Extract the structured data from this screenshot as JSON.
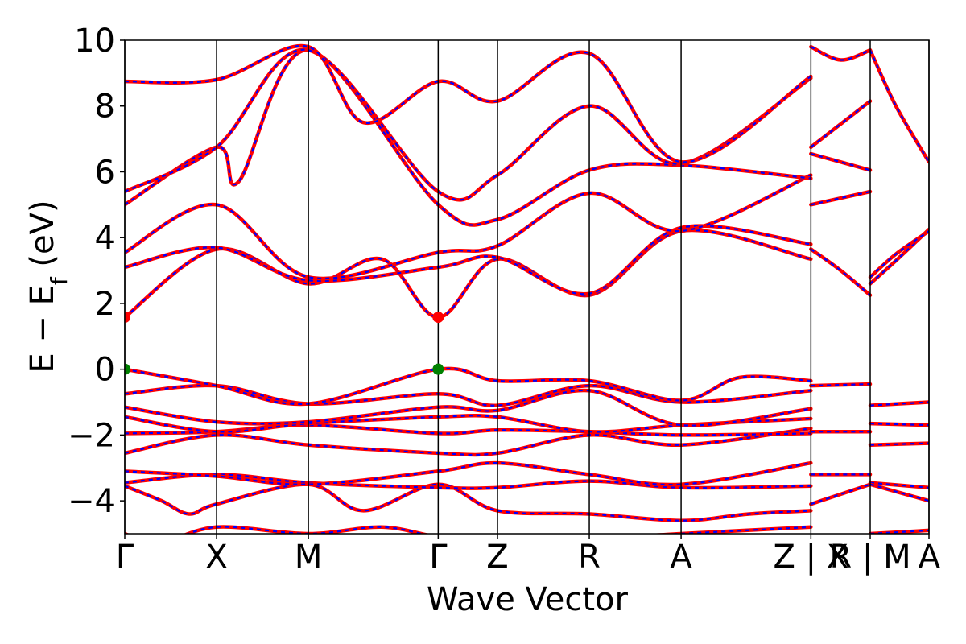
{
  "chart_data": {
    "type": "line",
    "xlabel": "Wave Vector",
    "ylabel": {
      "main": "E − E",
      "sub": "f",
      "unit": " (eV)"
    },
    "ylim": [
      -5,
      10
    ],
    "yticks": [
      "10",
      "8",
      "6",
      "4",
      "2",
      "0",
      "−2",
      "−4"
    ],
    "ytick_values": [
      10,
      8,
      6,
      4,
      2,
      0,
      -2,
      -4
    ],
    "xlim": [
      0,
      4.38
    ],
    "kpoints": [
      {
        "label": "Γ",
        "x": 0.0
      },
      {
        "label": "X",
        "x": 0.5
      },
      {
        "label": "M",
        "x": 1.0
      },
      {
        "label": "Γ",
        "x": 1.707
      },
      {
        "label": "Z",
        "x": 2.03
      },
      {
        "label": "R",
        "x": 2.53
      },
      {
        "label": "A",
        "x": 3.03
      },
      {
        "label": "Z | X",
        "x": 3.737
      },
      {
        "label": "R | M",
        "x": 4.06
      },
      {
        "label": "A",
        "x": 4.38
      }
    ],
    "series_colors": {
      "solid": "#ff0000",
      "dashed": "#0000ff"
    },
    "band_edges": [
      {
        "name": "CBM",
        "color": "#ff0000",
        "points": [
          [
            0.0,
            1.58
          ],
          [
            1.707,
            1.58
          ]
        ]
      },
      {
        "name": "VBM",
        "color": "#008000",
        "points": [
          [
            0.0,
            0.0
          ],
          [
            1.707,
            0.0
          ]
        ]
      }
    ],
    "bands": [
      [
        [
          0,
          -5.0
        ],
        [
          0.1,
          -5.2
        ],
        [
          0.2,
          -5.3
        ],
        [
          0.5,
          -4.8
        ],
        [
          1.0,
          -5.0
        ],
        [
          1.4,
          -4.8
        ],
        [
          1.707,
          -5.1
        ],
        [
          2.03,
          -5.3
        ],
        [
          3.03,
          -5.0
        ],
        [
          3.737,
          -4.8
        ]
      ],
      [
        [
          0,
          -3.55
        ],
        [
          0.2,
          -4.0
        ],
        [
          0.35,
          -4.4
        ],
        [
          0.5,
          -4.1
        ],
        [
          1.0,
          -3.5
        ],
        [
          1.3,
          -4.3
        ],
        [
          1.707,
          -3.5
        ],
        [
          2.03,
          -4.3
        ],
        [
          2.53,
          -4.4
        ],
        [
          3.03,
          -4.6
        ],
        [
          3.4,
          -4.4
        ],
        [
          3.737,
          -4.3
        ]
      ],
      [
        [
          0,
          -3.45
        ],
        [
          0.5,
          -3.2
        ],
        [
          1.0,
          -3.45
        ],
        [
          1.707,
          -3.6
        ],
        [
          2.03,
          -3.6
        ],
        [
          2.53,
          -3.4
        ],
        [
          3.03,
          -3.6
        ],
        [
          3.737,
          -3.55
        ]
      ],
      [
        [
          0,
          -3.1
        ],
        [
          0.5,
          -3.25
        ],
        [
          1.0,
          -3.5
        ],
        [
          1.707,
          -3.1
        ],
        [
          2.03,
          -2.85
        ],
        [
          2.53,
          -3.2
        ],
        [
          3.03,
          -3.5
        ],
        [
          3.737,
          -2.85
        ]
      ],
      [
        [
          0,
          -2.55
        ],
        [
          0.5,
          -2.0
        ],
        [
          1.0,
          -2.3
        ],
        [
          1.707,
          -2.55
        ],
        [
          2.03,
          -2.55
        ],
        [
          2.53,
          -2.0
        ],
        [
          3.03,
          -2.3
        ],
        [
          3.737,
          -1.8
        ]
      ],
      [
        [
          0,
          -1.95
        ],
        [
          0.5,
          -1.9
        ],
        [
          1.0,
          -1.7
        ],
        [
          1.707,
          -1.95
        ],
        [
          2.03,
          -1.85
        ],
        [
          2.53,
          -1.9
        ],
        [
          3.03,
          -2.0
        ],
        [
          3.737,
          -1.95
        ]
      ],
      [
        [
          0,
          -1.45
        ],
        [
          0.5,
          -1.9
        ],
        [
          1.0,
          -1.65
        ],
        [
          1.707,
          -1.45
        ],
        [
          2.03,
          -1.45
        ],
        [
          2.53,
          -1.9
        ],
        [
          3.03,
          -1.7
        ],
        [
          3.737,
          -1.5
        ]
      ],
      [
        [
          0,
          -1.15
        ],
        [
          0.5,
          -1.6
        ],
        [
          1.0,
          -1.6
        ],
        [
          1.707,
          -1.15
        ],
        [
          2.03,
          -1.25
        ],
        [
          2.53,
          -0.65
        ],
        [
          3.03,
          -1.7
        ],
        [
          3.737,
          -1.2
        ]
      ],
      [
        [
          0,
          -0.75
        ],
        [
          0.5,
          -0.5
        ],
        [
          1.0,
          -1.05
        ],
        [
          1.707,
          -0.75
        ],
        [
          2.03,
          -1.1
        ],
        [
          2.53,
          -0.5
        ],
        [
          3.03,
          -1.0
        ],
        [
          3.737,
          -0.65
        ]
      ],
      [
        [
          0,
          0.0
        ],
        [
          0.5,
          -0.5
        ],
        [
          1.0,
          -1.05
        ],
        [
          1.707,
          0.0
        ],
        [
          2.03,
          -0.35
        ],
        [
          2.53,
          -0.35
        ],
        [
          3.03,
          -0.95
        ],
        [
          3.35,
          -0.25
        ],
        [
          3.737,
          -0.35
        ]
      ],
      [
        [
          0,
          1.58
        ],
        [
          0.5,
          3.65
        ],
        [
          1.0,
          2.6
        ],
        [
          1.4,
          3.35
        ],
        [
          1.707,
          1.58
        ],
        [
          2.03,
          3.35
        ],
        [
          2.53,
          2.25
        ],
        [
          3.03,
          4.2
        ],
        [
          3.737,
          3.35
        ]
      ],
      [
        [
          0,
          3.1
        ],
        [
          0.5,
          3.7
        ],
        [
          1.0,
          2.7
        ],
        [
          1.707,
          3.1
        ],
        [
          2.03,
          3.4
        ],
        [
          2.53,
          2.3
        ],
        [
          3.03,
          4.3
        ],
        [
          3.737,
          3.8
        ]
      ],
      [
        [
          0,
          3.55
        ],
        [
          0.5,
          5.0
        ],
        [
          1.0,
          2.8
        ],
        [
          1.707,
          3.55
        ],
        [
          2.03,
          3.75
        ],
        [
          2.53,
          5.35
        ],
        [
          3.03,
          4.2
        ],
        [
          3.737,
          5.9
        ]
      ],
      [
        [
          0,
          5.0
        ],
        [
          0.5,
          6.75
        ],
        [
          0.62,
          5.7
        ],
        [
          1.0,
          9.7
        ],
        [
          1.707,
          5.0
        ],
        [
          2.03,
          4.55
        ],
        [
          2.53,
          6.05
        ],
        [
          3.03,
          6.2
        ],
        [
          3.737,
          5.8
        ]
      ],
      [
        [
          0,
          5.4
        ],
        [
          0.5,
          6.75
        ],
        [
          1.0,
          9.7
        ],
        [
          1.707,
          5.4
        ],
        [
          2.03,
          5.9
        ],
        [
          2.53,
          8.0
        ],
        [
          3.03,
          6.25
        ],
        [
          3.737,
          8.85
        ]
      ],
      [
        [
          0,
          8.75
        ],
        [
          0.5,
          8.8
        ],
        [
          1.0,
          9.8
        ],
        [
          1.3,
          7.5
        ],
        [
          1.707,
          8.75
        ],
        [
          2.03,
          8.15
        ],
        [
          2.53,
          9.6
        ],
        [
          3.03,
          6.3
        ],
        [
          3.737,
          8.9
        ]
      ]
    ],
    "bands_right": [
      {
        "start": 3.737,
        "end": 4.06,
        "points": [
          [
            3.737,
            6.75
          ],
          [
            4.06,
            8.15
          ]
        ]
      },
      {
        "start": 3.737,
        "end": 4.06,
        "points": [
          [
            3.737,
            6.55
          ],
          [
            4.06,
            6.05
          ]
        ]
      },
      {
        "start": 3.737,
        "end": 4.06,
        "points": [
          [
            3.737,
            5.0
          ],
          [
            4.06,
            5.4
          ]
        ]
      },
      {
        "start": 3.737,
        "end": 4.06,
        "points": [
          [
            3.737,
            3.65
          ],
          [
            3.9,
            3.0
          ],
          [
            4.06,
            2.25
          ]
        ]
      },
      {
        "start": 3.737,
        "end": 4.06,
        "points": [
          [
            3.737,
            9.8
          ],
          [
            3.9,
            9.4
          ],
          [
            4.06,
            9.7
          ]
        ]
      },
      {
        "start": 3.737,
        "end": 4.06,
        "points": [
          [
            3.737,
            -0.5
          ],
          [
            4.06,
            -0.45
          ]
        ]
      },
      {
        "start": 3.737,
        "end": 4.06,
        "points": [
          [
            3.737,
            -1.9
          ],
          [
            4.06,
            -1.9
          ]
        ]
      },
      {
        "start": 3.737,
        "end": 4.06,
        "points": [
          [
            3.737,
            -3.2
          ],
          [
            4.06,
            -3.2
          ]
        ]
      },
      {
        "start": 3.737,
        "end": 4.06,
        "points": [
          [
            3.737,
            -4.1
          ],
          [
            4.06,
            -3.5
          ]
        ]
      },
      {
        "start": 4.06,
        "end": 4.38,
        "points": [
          [
            4.06,
            9.7
          ],
          [
            4.2,
            8.0
          ],
          [
            4.38,
            6.3
          ]
        ]
      },
      {
        "start": 4.06,
        "end": 4.38,
        "points": [
          [
            4.06,
            2.6
          ],
          [
            4.2,
            3.3
          ],
          [
            4.38,
            4.25
          ]
        ]
      },
      {
        "start": 4.06,
        "end": 4.38,
        "points": [
          [
            4.06,
            2.8
          ],
          [
            4.2,
            3.5
          ],
          [
            4.38,
            4.2
          ]
        ]
      },
      {
        "start": 4.06,
        "end": 4.38,
        "points": [
          [
            4.06,
            -1.1
          ],
          [
            4.38,
            -1.0
          ]
        ]
      },
      {
        "start": 4.06,
        "end": 4.38,
        "points": [
          [
            4.06,
            -1.65
          ],
          [
            4.38,
            -1.7
          ]
        ]
      },
      {
        "start": 4.06,
        "end": 4.38,
        "points": [
          [
            4.06,
            -2.3
          ],
          [
            4.38,
            -2.25
          ]
        ]
      },
      {
        "start": 4.06,
        "end": 4.38,
        "points": [
          [
            4.06,
            -3.45
          ],
          [
            4.38,
            -3.6
          ]
        ]
      },
      {
        "start": 4.06,
        "end": 4.38,
        "points": [
          [
            4.06,
            -3.5
          ],
          [
            4.38,
            -4.0
          ]
        ]
      },
      {
        "start": 4.06,
        "end": 4.38,
        "points": [
          [
            4.06,
            -5.0
          ],
          [
            4.38,
            -4.9
          ]
        ]
      }
    ]
  }
}
